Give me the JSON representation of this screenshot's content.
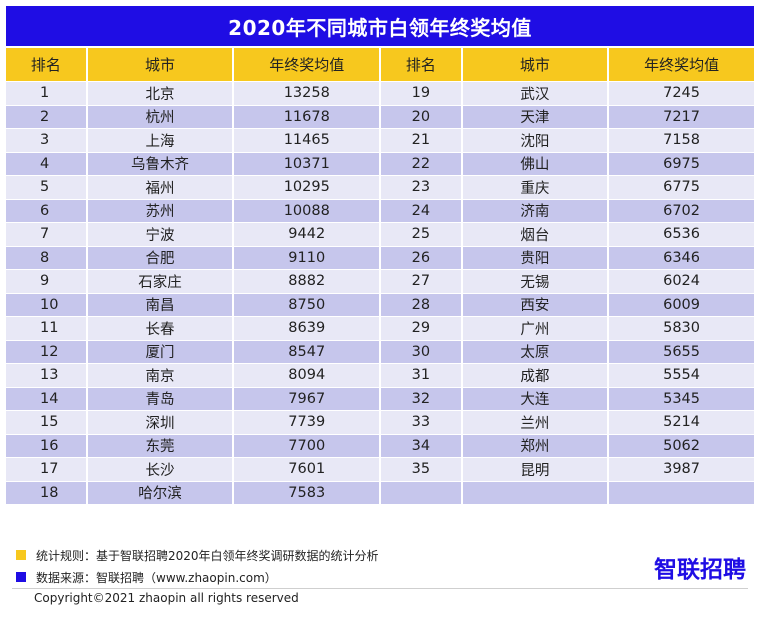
{
  "title": "2020年不同城市白领年终奖均值",
  "headers": [
    "排名",
    "城市",
    "年终奖均值",
    "排名",
    "城市",
    "年终奖均值"
  ],
  "rows": [
    [
      "1",
      "北京",
      "13258",
      "19",
      "武汉",
      "7245"
    ],
    [
      "2",
      "杭州",
      "11678",
      "20",
      "天津",
      "7217"
    ],
    [
      "3",
      "上海",
      "11465",
      "21",
      "沈阳",
      "7158"
    ],
    [
      "4",
      "乌鲁木齐",
      "10371",
      "22",
      "佛山",
      "6975"
    ],
    [
      "5",
      "福州",
      "10295",
      "23",
      "重庆",
      "6775"
    ],
    [
      "6",
      "苏州",
      "10088",
      "24",
      "济南",
      "6702"
    ],
    [
      "7",
      "宁波",
      "9442",
      "25",
      "烟台",
      "6536"
    ],
    [
      "8",
      "合肥",
      "9110",
      "26",
      "贵阳",
      "6346"
    ],
    [
      "9",
      "石家庄",
      "8882",
      "27",
      "无锡",
      "6024"
    ],
    [
      "10",
      "南昌",
      "8750",
      "28",
      "西安",
      "6009"
    ],
    [
      "11",
      "长春",
      "8639",
      "29",
      "广州",
      "5830"
    ],
    [
      "12",
      "厦门",
      "8547",
      "30",
      "太原",
      "5655"
    ],
    [
      "13",
      "南京",
      "8094",
      "31",
      "成都",
      "5554"
    ],
    [
      "14",
      "青岛",
      "7967",
      "32",
      "大连",
      "5345"
    ],
    [
      "15",
      "深圳",
      "7739",
      "33",
      "兰州",
      "5214"
    ],
    [
      "16",
      "东莞",
      "7700",
      "34",
      "郑州",
      "5062"
    ],
    [
      "17",
      "长沙",
      "7601",
      "35",
      "昆明",
      "3987"
    ],
    [
      "18",
      "哈尔滨",
      "7583",
      "",
      "",
      ""
    ]
  ],
  "notes": [
    {
      "color": "#f7c81e",
      "text": "统计规则：基于智联招聘2020年白领年终奖调研数据的统计分析"
    },
    {
      "color": "#1f0de4",
      "text": "数据来源：智联招聘（www.zhaopin.com）"
    }
  ],
  "logo": "智联招聘",
  "copyright": "Copyright©2021 zhaopin all rights reserved",
  "colors": {
    "title_bg": "#1f0de4",
    "header_bg": "#f7c81e",
    "row_light": "#e8e8f6",
    "row_dark": "#c6c6ec"
  }
}
